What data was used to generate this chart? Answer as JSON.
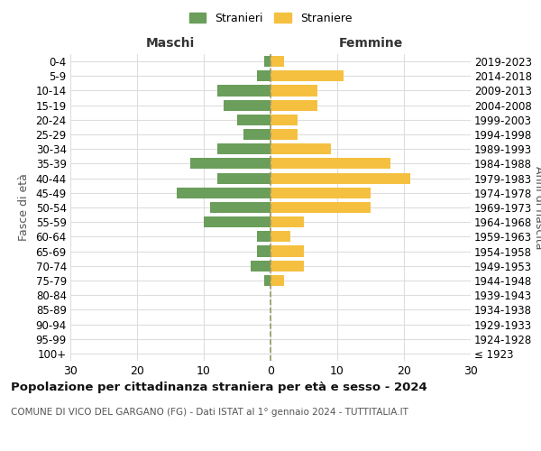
{
  "age_groups": [
    "100+",
    "95-99",
    "90-94",
    "85-89",
    "80-84",
    "75-79",
    "70-74",
    "65-69",
    "60-64",
    "55-59",
    "50-54",
    "45-49",
    "40-44",
    "35-39",
    "30-34",
    "25-29",
    "20-24",
    "15-19",
    "10-14",
    "5-9",
    "0-4"
  ],
  "birth_years": [
    "≤ 1923",
    "1924-1928",
    "1929-1933",
    "1934-1938",
    "1939-1943",
    "1944-1948",
    "1949-1953",
    "1954-1958",
    "1959-1963",
    "1964-1968",
    "1969-1973",
    "1974-1978",
    "1979-1983",
    "1984-1988",
    "1989-1993",
    "1994-1998",
    "1999-2003",
    "2004-2008",
    "2009-2013",
    "2014-2018",
    "2019-2023"
  ],
  "males": [
    0,
    0,
    0,
    0,
    0,
    1,
    3,
    2,
    2,
    10,
    9,
    14,
    8,
    12,
    8,
    4,
    5,
    7,
    8,
    2,
    1
  ],
  "females": [
    0,
    0,
    0,
    0,
    0,
    2,
    5,
    5,
    3,
    5,
    15,
    15,
    21,
    18,
    9,
    4,
    4,
    7,
    7,
    11,
    2
  ],
  "male_color": "#6a9e5a",
  "female_color": "#f5c040",
  "title": "Popolazione per cittadinanza straniera per età e sesso - 2024",
  "subtitle": "COMUNE DI VICO DEL GARGANO (FG) - Dati ISTAT al 1° gennaio 2024 - TUTTITALIA.IT",
  "ylabel_left": "Fasce di età",
  "ylabel_right": "Anni di nascita",
  "xlabel_left": "Maschi",
  "xlabel_right": "Femmine",
  "legend_males": "Stranieri",
  "legend_females": "Straniere",
  "xlim": 30,
  "background_color": "#ffffff",
  "grid_color": "#dddddd",
  "dashed_line_color": "#999966"
}
